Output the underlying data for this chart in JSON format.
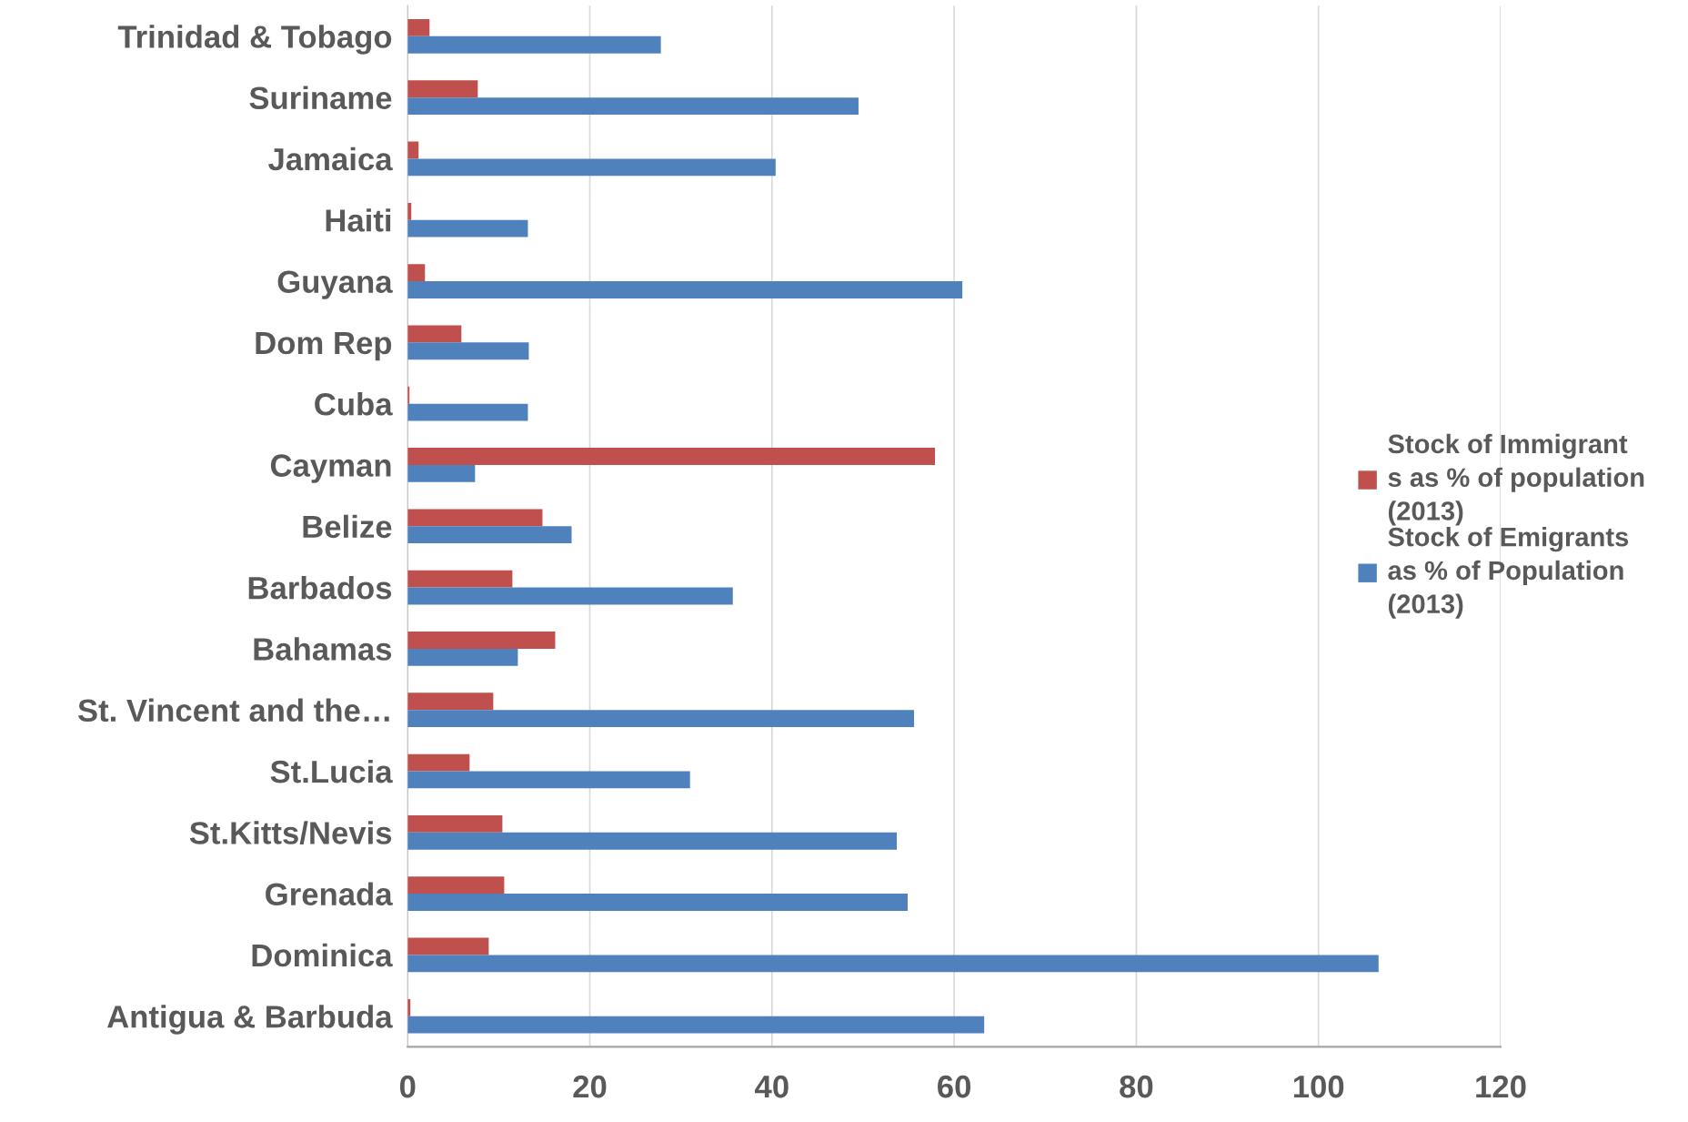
{
  "chart_data": {
    "type": "bar",
    "orientation": "horizontal",
    "categories": [
      "Trinidad & Tobago",
      "Suriname",
      "Jamaica",
      "Haiti",
      "Guyana",
      "Dom Rep",
      "Cuba",
      "Cayman",
      "Belize",
      "Barbados",
      "Bahamas",
      "St. Vincent and the…",
      "St.Lucia",
      "St.Kitts/Nevis",
      "Grenada",
      "Dominica",
      "Antigua & Barbuda"
    ],
    "series": [
      {
        "name": "Stock of Immigrant\ns as % of population\n(2013)",
        "color": "#c0504d",
        "values": [
          2.4,
          7.7,
          1.2,
          0.4,
          1.9,
          5.9,
          0.2,
          57.9,
          14.8,
          11.5,
          16.2,
          9.4,
          6.8,
          10.4,
          10.6,
          8.9,
          0.3
        ]
      },
      {
        "name": "Stock of Emigrants\nas % of Population\n(2013)",
        "color": "#4f81bd",
        "values": [
          27.8,
          49.5,
          40.4,
          13.2,
          60.9,
          13.3,
          13.2,
          7.4,
          18.0,
          35.7,
          12.1,
          55.6,
          31.0,
          53.7,
          54.9,
          106.6,
          63.3
        ]
      }
    ],
    "xlim": [
      0,
      120
    ],
    "xticks": [
      0,
      20,
      40,
      60,
      80,
      100,
      120
    ],
    "grid": "x",
    "legend": "right"
  }
}
